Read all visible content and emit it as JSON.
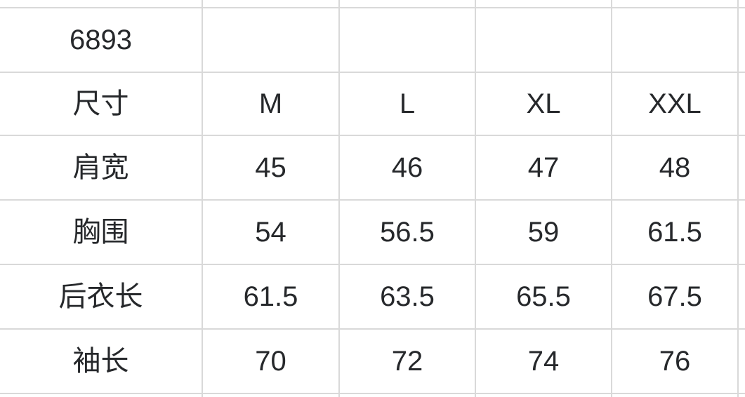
{
  "size_chart": {
    "product_code": "6893",
    "size_label": "尺寸",
    "sizes": [
      "M",
      "L",
      "XL",
      "XXL"
    ],
    "measurements": [
      {
        "label": "肩宽",
        "values": [
          "45",
          "46",
          "47",
          "48"
        ]
      },
      {
        "label": "胸围",
        "values": [
          "54",
          "56.5",
          "59",
          "61.5"
        ]
      },
      {
        "label": "后衣长",
        "values": [
          "61.5",
          "63.5",
          "65.5",
          "67.5"
        ]
      },
      {
        "label": "袖长",
        "values": [
          "70",
          "72",
          "74",
          "76"
        ]
      }
    ],
    "colors": {
      "grid_line": "#d9d9d9",
      "text": "#26282b",
      "background": "#ffffff"
    }
  }
}
